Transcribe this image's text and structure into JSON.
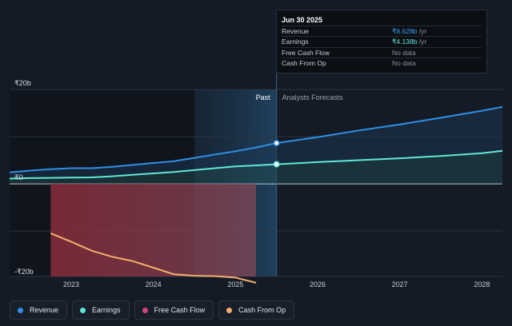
{
  "tooltip": {
    "date": "Jun 30 2025",
    "rows": [
      {
        "label": "Revenue",
        "value": "₹8.628b",
        "suffix": " /yr"
      },
      {
        "label": "Earnings",
        "value": "₹4.138b",
        "suffix": " /yr"
      },
      {
        "label": "Free Cash Flow",
        "value": "No data",
        "suffix": ""
      },
      {
        "label": "Cash From Op",
        "value": "No data",
        "suffix": ""
      }
    ]
  },
  "sections": {
    "past": "Past",
    "forecast": "Analysts Forecasts"
  },
  "legend": [
    {
      "label": "Revenue",
      "color": "#2f8fe6"
    },
    {
      "label": "Earnings",
      "color": "#5fe8d8"
    },
    {
      "label": "Free Cash Flow",
      "color": "#d6457a"
    },
    {
      "label": "Cash From Op",
      "color": "#f5b06c"
    }
  ],
  "chart_data": {
    "type": "line",
    "y_tick_labels": [
      "₹20b",
      "₹0",
      "-₹20b"
    ],
    "ylim": [
      -20,
      20
    ],
    "x_tick_labels": [
      "2023",
      "2024",
      "2025",
      "2026",
      "2027",
      "2028"
    ],
    "xlim": [
      2022.25,
      2028.25
    ],
    "past_end": 2025.5,
    "grid": true,
    "series": [
      {
        "name": "Revenue",
        "color": "#2f8fe6",
        "x": [
          2022.25,
          2022.5,
          2022.75,
          2023.0,
          2023.25,
          2023.5,
          2023.75,
          2024.0,
          2024.25,
          2024.5,
          2024.75,
          2025.0,
          2025.25,
          2025.5,
          2026.0,
          2026.5,
          2027.0,
          2027.5,
          2028.0,
          2028.25
        ],
        "y": [
          2.4,
          2.8,
          3.1,
          3.3,
          3.3,
          3.6,
          4.0,
          4.4,
          4.8,
          5.5,
          6.2,
          6.9,
          7.7,
          8.628,
          9.9,
          11.3,
          12.6,
          14.0,
          15.5,
          16.3
        ]
      },
      {
        "name": "Earnings",
        "color": "#5fe8d8",
        "x": [
          2022.25,
          2022.5,
          2022.75,
          2023.0,
          2023.25,
          2023.5,
          2023.75,
          2024.0,
          2024.25,
          2024.5,
          2024.75,
          2025.0,
          2025.25,
          2025.5,
          2026.0,
          2026.5,
          2027.0,
          2027.5,
          2028.0,
          2028.25
        ],
        "y": [
          1.1,
          1.2,
          1.25,
          1.3,
          1.35,
          1.6,
          1.9,
          2.2,
          2.5,
          2.9,
          3.3,
          3.7,
          3.9,
          4.138,
          4.6,
          5.0,
          5.4,
          5.9,
          6.5,
          7.0
        ]
      },
      {
        "name": "Free Cash Flow",
        "color": "#d6457a",
        "x": [
          2022.75,
          2025.25
        ],
        "y": [
          -10.0,
          -10.0
        ]
      },
      {
        "name": "Cash From Op",
        "color": "#f5b06c",
        "x": [
          2022.75,
          2023.0,
          2023.25,
          2023.5,
          2023.75,
          2024.0,
          2024.25,
          2024.5,
          2024.75,
          2025.0,
          2025.25
        ],
        "y": [
          -10.5,
          -12.3,
          -14.2,
          -15.5,
          -16.4,
          -17.8,
          -19.2,
          -19.5,
          -19.6,
          -19.9,
          -21.0
        ]
      }
    ]
  }
}
